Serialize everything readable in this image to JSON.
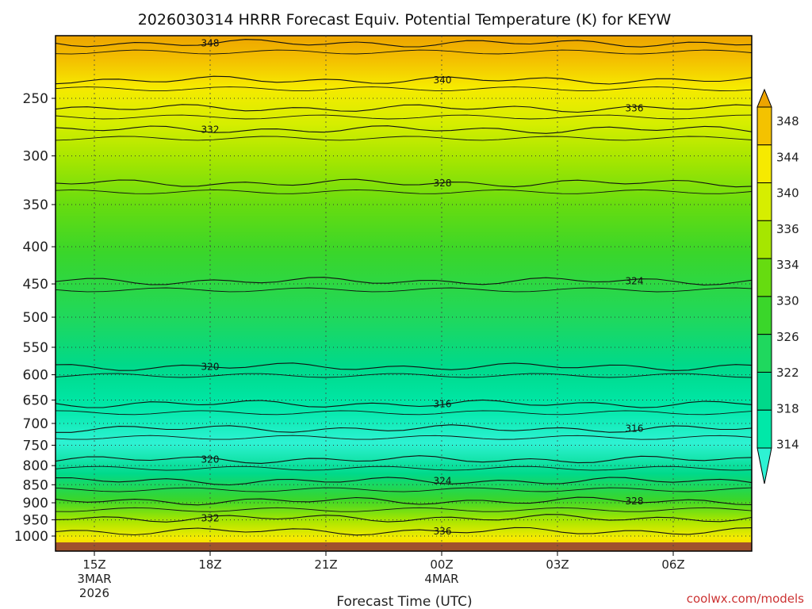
{
  "chart_data": {
    "type": "contour",
    "title": "2026030314 HRRR Forecast Equiv. Potential Temperature (K) for KEYW",
    "xlabel": "Forecast Time (UTC)",
    "ylabel": "",
    "credit": "coolwx.com/models",
    "y_axis": {
      "scale": "log",
      "inverted": true,
      "range": [
        1000,
        200
      ],
      "ticks": [
        250,
        300,
        350,
        400,
        450,
        500,
        550,
        600,
        650,
        700,
        750,
        800,
        850,
        900,
        950,
        1000
      ]
    },
    "x_axis": {
      "ticks": [
        {
          "label": "15Z",
          "sub1": "3MAR",
          "sub2": "2026"
        },
        {
          "label": "18Z",
          "sub1": "",
          "sub2": ""
        },
        {
          "label": "21Z",
          "sub1": "",
          "sub2": ""
        },
        {
          "label": "00Z",
          "sub1": "4MAR",
          "sub2": ""
        },
        {
          "label": "03Z",
          "sub1": "",
          "sub2": ""
        },
        {
          "label": "06Z",
          "sub1": "",
          "sub2": ""
        }
      ]
    },
    "colorbar": {
      "levels": [
        314,
        318,
        322,
        326,
        330,
        334,
        336,
        340,
        344,
        348
      ],
      "colors": [
        "#2ef2d3",
        "#00e8a8",
        "#00d98a",
        "#1fd85e",
        "#3ad62a",
        "#66dc10",
        "#a6e600",
        "#d6ee00",
        "#f6ea00",
        "#f4c200",
        "#eda400"
      ]
    },
    "contour_levels": [
      {
        "p": 210,
        "value": 348,
        "label": "348"
      },
      {
        "p": 236,
        "value": 340,
        "label": "340"
      },
      {
        "p": 258,
        "value": 336,
        "label": "336"
      },
      {
        "p": 276,
        "value": 332,
        "label": "332"
      },
      {
        "p": 327,
        "value": 328,
        "label": "328"
      },
      {
        "p": 446,
        "value": 324,
        "label": "324"
      },
      {
        "p": 585,
        "value": 320,
        "label": "320"
      },
      {
        "p": 658,
        "value": 316,
        "label": "316"
      },
      {
        "p": 712,
        "value": 316,
        "label": "316"
      },
      {
        "p": 785,
        "value": 320,
        "label": "320"
      },
      {
        "p": 840,
        "value": 324,
        "label": "324"
      },
      {
        "p": 895,
        "value": 328,
        "label": "328"
      },
      {
        "p": 945,
        "value": 332,
        "label": "332"
      },
      {
        "p": 985,
        "value": 336,
        "label": "336"
      }
    ]
  }
}
